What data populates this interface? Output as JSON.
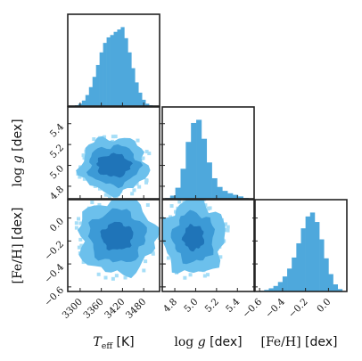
{
  "chart_data": {
    "type": "corner",
    "parameters": [
      {
        "key": "teff",
        "label": "T_eff [K]",
        "label_main": "T",
        "label_sub": "eff",
        "label_unit": "[K]",
        "range": [
          3265,
          3525
        ],
        "ticks": [
          3300,
          3360,
          3420,
          3480
        ],
        "tick_labels": [
          "3300",
          "3360",
          "3420",
          "3480"
        ]
      },
      {
        "key": "logg",
        "label": "log g [dex]",
        "label_main": "log g",
        "label_unit": "[dex]",
        "range": [
          4.68,
          5.56
        ],
        "ticks": [
          4.8,
          5.0,
          5.2,
          5.4
        ],
        "tick_labels": [
          "4.8",
          "5.0",
          "5.2",
          "5.4"
        ]
      },
      {
        "key": "feh",
        "label": "[Fe/H] [dex]",
        "label_main": "[Fe/H]",
        "label_unit": "[dex]",
        "range": [
          -0.64,
          0.16
        ],
        "ticks": [
          -0.6,
          -0.4,
          -0.2,
          0.0
        ],
        "tick_labels": [
          "−0.6",
          "−0.4",
          "−0.2",
          "0.0"
        ]
      }
    ],
    "histograms": [
      {
        "param": "teff",
        "centers": [
          3290,
          3300,
          3310,
          3320,
          3330,
          3340,
          3350,
          3360,
          3370,
          3380,
          3390,
          3400,
          3410,
          3420,
          3430,
          3440,
          3450,
          3460,
          3470,
          3480,
          3490,
          3500
        ],
        "counts": [
          0.01,
          0.03,
          0.07,
          0.14,
          0.24,
          0.37,
          0.52,
          0.68,
          0.8,
          0.87,
          0.9,
          0.94,
          0.97,
          1.0,
          0.86,
          0.68,
          0.48,
          0.3,
          0.17,
          0.08,
          0.03,
          0.01
        ]
      },
      {
        "param": "logg",
        "centers": [
          4.73,
          4.78,
          4.83,
          4.88,
          4.93,
          4.98,
          5.03,
          5.08,
          5.13,
          5.18,
          5.23,
          5.28,
          5.33,
          5.38,
          5.43,
          5.48
        ],
        "counts": [
          0.01,
          0.04,
          0.14,
          0.38,
          0.72,
          0.96,
          1.0,
          0.76,
          0.46,
          0.26,
          0.15,
          0.1,
          0.07,
          0.05,
          0.03,
          0.01
        ]
      },
      {
        "param": "feh",
        "centers": [
          -0.58,
          -0.54,
          -0.5,
          -0.46,
          -0.42,
          -0.38,
          -0.34,
          -0.3,
          -0.26,
          -0.22,
          -0.18,
          -0.14,
          -0.1,
          -0.06,
          -0.02,
          0.02,
          0.06,
          0.1
        ],
        "counts": [
          0.01,
          0.02,
          0.04,
          0.07,
          0.12,
          0.19,
          0.29,
          0.43,
          0.61,
          0.8,
          0.95,
          1.0,
          0.88,
          0.66,
          0.42,
          0.22,
          0.09,
          0.03
        ]
      }
    ],
    "density_2d": [
      {
        "x": "teff",
        "y": "logg",
        "center": [
          3395,
          5.0
        ],
        "levels": [
          {
            "rx": 95,
            "ry": 0.27
          },
          {
            "rx": 72,
            "ry": 0.19
          },
          {
            "rx": 48,
            "ry": 0.11
          }
        ]
      },
      {
        "x": "teff",
        "y": "feh",
        "center": [
          3405,
          -0.16
        ],
        "levels": [
          {
            "rx": 110,
            "ry": 0.33
          },
          {
            "rx": 80,
            "ry": 0.23
          },
          {
            "rx": 45,
            "ry": 0.12
          }
        ]
      },
      {
        "x": "logg",
        "y": "feh",
        "center": [
          4.98,
          -0.17
        ],
        "levels": [
          {
            "rx": 0.3,
            "ry": 0.32
          },
          {
            "rx": 0.2,
            "ry": 0.22
          },
          {
            "rx": 0.1,
            "ry": 0.11
          }
        ]
      }
    ],
    "colors": {
      "hist": "#4ea8dc",
      "levels": [
        "#a6def7",
        "#6cc0ec",
        "#3c9ad6",
        "#1f74b8"
      ],
      "frame": "#222222",
      "text": "#111111"
    }
  }
}
